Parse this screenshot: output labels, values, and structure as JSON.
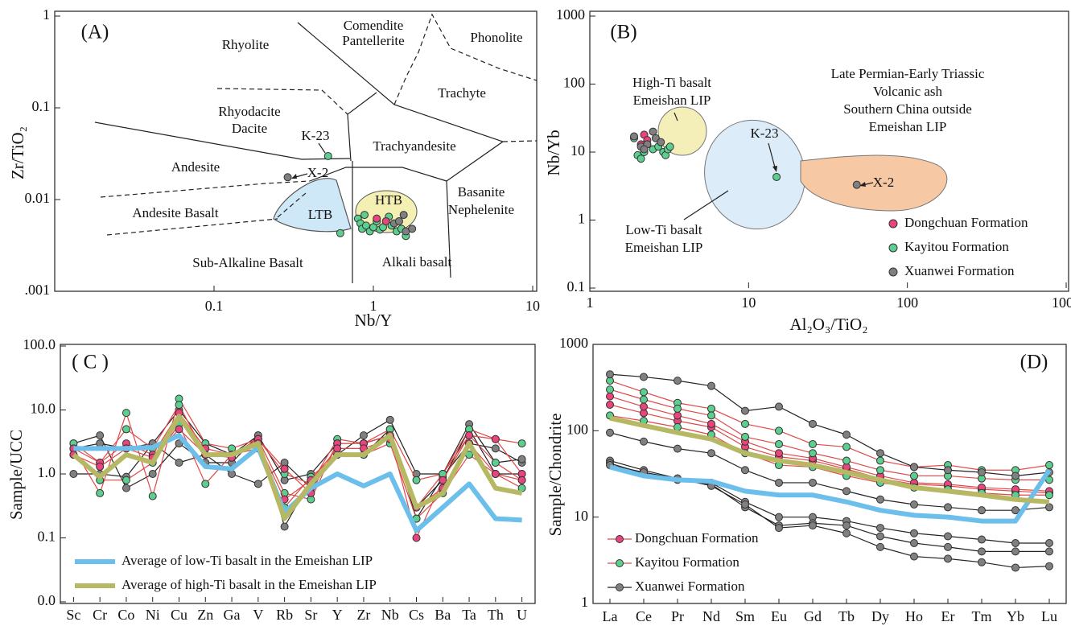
{
  "chart_data": [
    {
      "type": "scatter",
      "title": "(A)",
      "x_label": "Nb/Y",
      "y_label": "Zr/TiO₂",
      "xscale": "log",
      "yscale": "log",
      "xlim": [
        0.01,
        10
      ],
      "ylim": [
        0.001,
        1
      ],
      "xticks": [
        0.1,
        1,
        10
      ],
      "yticks": [
        1,
        0.1,
        0.01,
        {
          "value": 0.001,
          "label": ".001"
        }
      ],
      "legend": "none",
      "annotations": [
        "Rhyolite",
        "Comendite",
        "Pantellerite",
        "Phonolite",
        "Trachyte",
        "Rhyodacite",
        "Dacite",
        "Trachyandesite",
        "Andesite",
        "Andesite Basalt",
        "Basanite",
        "Nephelenite",
        "Sub-Alkaline Basalt",
        "Alkali basalt",
        "LTB",
        "HTB",
        "K-23",
        "X-2"
      ],
      "series": [
        {
          "color": "#5ccf8f",
          "x": [
            0.8,
            0.83,
            0.85,
            0.88,
            0.9,
            0.95,
            1.0,
            1.05,
            1.1,
            1.15,
            1.25,
            1.3,
            1.4,
            1.5,
            1.6,
            0.62,
            0.52
          ],
          "y": [
            0.0062,
            0.0055,
            0.0048,
            0.0068,
            0.0052,
            0.0045,
            0.005,
            0.0058,
            0.0047,
            0.005,
            0.0065,
            0.0052,
            0.0045,
            0.0048,
            0.004,
            0.0043,
            0.0298
          ]
        },
        {
          "color": "#e8457c",
          "x": [
            1.05,
            1.2
          ],
          "y": [
            0.0062,
            0.0058
          ]
        },
        {
          "color": "#808080",
          "x": [
            1.35,
            1.45,
            1.55,
            1.6,
            1.75,
            0.29
          ],
          "y": [
            0.0055,
            0.0058,
            0.0068,
            0.0045,
            0.0048,
            0.0175
          ]
        }
      ]
    },
    {
      "type": "scatter",
      "title": "(B)",
      "x_label": "Al₂O₃/TiO₂",
      "y_label": "Nb/Yb",
      "xscale": "log",
      "yscale": "log",
      "xlim": [
        1,
        1000
      ],
      "ylim": [
        0.1,
        1000
      ],
      "xticks": [
        1,
        10,
        100,
        1000
      ],
      "yticks": [
        0.1,
        1,
        10,
        100,
        1000
      ],
      "legend": "lower right",
      "annotations": [
        "High-Ti basalt",
        "Emeishan LIP",
        "Late Permian-Early Triassic",
        "Volcanic ash",
        "Southern China outside",
        "Emeishan LIP",
        "K-23",
        "X-2",
        "Low-Ti basalt",
        "Emeishan LIP"
      ],
      "series": [
        {
          "name": "Dongchuan Formation",
          "color": "#e8457c",
          "x": [
            2.2,
            2.3,
            2.1
          ],
          "y": [
            18,
            15,
            13
          ]
        },
        {
          "name": "Kayitou Formation",
          "color": "#5ccf8f",
          "x": [
            1.9,
            2.0,
            2.1,
            2.2,
            2.3,
            2.5,
            2.7,
            2.9,
            3.0,
            3.1,
            3.2,
            15
          ],
          "y": [
            16,
            9,
            8,
            10,
            13,
            11,
            12,
            10,
            9,
            11,
            12,
            4.3
          ]
        },
        {
          "name": "Xuanwei Formation",
          "color": "#808080",
          "x": [
            1.9,
            2.1,
            2.3,
            2.5,
            2.6,
            2.8,
            2.2,
            48
          ],
          "y": [
            17,
            12,
            13,
            20,
            16,
            14,
            11,
            3.3
          ]
        }
      ]
    },
    {
      "type": "line",
      "title": "( C )",
      "y_label": "Sample/UCC",
      "yscale": "log",
      "ylim": [
        0.01,
        100
      ],
      "yticks": [
        {
          "value": 100,
          "label": "100.0"
        },
        {
          "value": 10,
          "label": "10.0"
        },
        {
          "value": 1,
          "label": "1.0"
        },
        0.1,
        {
          "value": 0.01,
          "label": "0.0"
        }
      ],
      "legend": "lower left",
      "categories": [
        "Sc",
        "Cr",
        "Co",
        "Ni",
        "Cu",
        "Zn",
        "Ga",
        "V",
        "Rb",
        "Sr",
        "Y",
        "Zr",
        "Nb",
        "Cs",
        "Ba",
        "Ta",
        "Th",
        "U"
      ],
      "series": [
        {
          "color": "#222222",
          "marker_color": "#808080",
          "values": [
            3,
            4,
            0.6,
            1,
            3,
            1.5,
            1.5,
            4,
            0.15,
            0.8,
            2,
            2,
            5,
            0.2,
            0.9,
            3,
            2.5,
            1.5
          ]
        },
        {
          "color": "#222222",
          "marker_color": "#808080",
          "values": [
            1,
            1,
            0.9,
            3,
            1.5,
            2,
            1,
            0.7,
            1.5,
            0.6,
            2,
            4,
            7,
            1,
            1,
            6,
            1.5,
            1.7
          ]
        },
        {
          "color": "#222222",
          "marker_color": "#808080",
          "values": [
            2.5,
            3,
            2.5,
            3,
            10,
            3,
            2,
            4,
            0.8,
            1,
            3,
            3,
            4,
            0.3,
            0.8,
            5,
            1,
            1
          ]
        },
        {
          "color": "#e04848",
          "marker_color": "#5ccf8f",
          "values": [
            2.5,
            0.5,
            9,
            0.45,
            15,
            3,
            2.5,
            3.5,
            1,
            0.7,
            3.5,
            3,
            5,
            0.8,
            1,
            5,
            3.5,
            3
          ]
        },
        {
          "color": "#e04848",
          "marker_color": "#5ccf8f",
          "values": [
            3,
            1.5,
            5,
            2.5,
            12,
            2,
            2,
            3.5,
            0.5,
            0.4,
            3,
            3,
            4,
            0.3,
            1,
            4,
            1.5,
            0.8
          ]
        },
        {
          "color": "#e04848",
          "marker_color": "#5ccf8f",
          "values": [
            2,
            0.8,
            0.8,
            1.5,
            6,
            0.7,
            2,
            2.5,
            0.3,
            0.9,
            2,
            2,
            3,
            0.2,
            0.5,
            2,
            1,
            0.6
          ]
        },
        {
          "color": "#e04848",
          "marker_color": "#e8457c",
          "values": [
            2.5,
            1.5,
            3,
            2,
            9,
            2.5,
            2,
            3.5,
            1.2,
            0.5,
            3,
            3,
            4,
            0.1,
            0.8,
            4,
            3.5,
            1
          ]
        },
        {
          "color": "#e04848",
          "marker_color": "#e8457c",
          "values": [
            2,
            1.3,
            2.5,
            1.8,
            5,
            2,
            1.8,
            3,
            0.4,
            0.8,
            2.5,
            2.5,
            3.5,
            0.3,
            0.6,
            3,
            1,
            0.8
          ]
        },
        {
          "name": "Average of low-Ti basalt in the Emeishan LIP",
          "color": "#6cbfea",
          "markers": false,
          "values": [
            2.5,
            2.5,
            2.5,
            2.6,
            4,
            1.3,
            1.2,
            2.6,
            0.25,
            0.6,
            1.0,
            0.65,
            1.0,
            0.13,
            0.3,
            0.7,
            0.2,
            0.19
          ]
        },
        {
          "name": "Average of high-Ti basalt in the Emeishan LIP",
          "color": "#b7b864",
          "markers": false,
          "values": [
            2,
            0.9,
            2,
            1.5,
            8,
            2,
            2,
            3,
            0.2,
            0.7,
            2,
            2,
            4,
            0.3,
            0.5,
            3,
            0.6,
            0.5
          ]
        }
      ]
    },
    {
      "type": "line",
      "title": "(D)",
      "y_label": "Sample/Chondrite",
      "yscale": "log",
      "ylim": [
        1,
        1000
      ],
      "yticks": [
        1,
        10,
        100,
        1000
      ],
      "legend": "lower left",
      "categories": [
        "La",
        "Ce",
        "Pr",
        "Nd",
        "Sm",
        "Eu",
        "Gd",
        "Tb",
        "Dy",
        "Ho",
        "Er",
        "Tm",
        "Yb",
        "Lu"
      ],
      "series": [
        {
          "name": "Dongchuan Formation",
          "color": "#e04848",
          "marker_color": "#e8457c",
          "values": [
            200,
            160,
            130,
            110,
            65,
            50,
            45,
            36,
            28,
            24,
            23,
            21,
            20,
            19
          ]
        },
        {
          "color": "#e04848",
          "marker_color": "#e8457c",
          "values": [
            250,
            190,
            150,
            120,
            75,
            55,
            48,
            38,
            30,
            25,
            24,
            22,
            21,
            20
          ]
        },
        {
          "name": "Kayitou Formation",
          "color": "#e04848",
          "marker_color": "#5ccf8f",
          "values": [
            380,
            280,
            210,
            180,
            120,
            100,
            70,
            65,
            45,
            38,
            40,
            35,
            35,
            40
          ]
        },
        {
          "color": "#e04848",
          "marker_color": "#5ccf8f",
          "values": [
            300,
            230,
            180,
            150,
            85,
            70,
            55,
            45,
            35,
            30,
            30,
            28,
            27,
            27
          ]
        },
        {
          "color": "#e04848",
          "marker_color": "#5ccf8f",
          "values": [
            150,
            130,
            110,
            90,
            55,
            40,
            38,
            30,
            25,
            22,
            21,
            19,
            18,
            18
          ]
        },
        {
          "name": "Xuanwei Formation",
          "color": "#222222",
          "marker_color": "#808080",
          "values": [
            450,
            420,
            380,
            330,
            170,
            190,
            120,
            90,
            55,
            38,
            35,
            33,
            30,
            33
          ]
        },
        {
          "color": "#222222",
          "marker_color": "#808080",
          "values": [
            95,
            75,
            62,
            55,
            35,
            25,
            25,
            20,
            16,
            14,
            13,
            12,
            12,
            13
          ]
        },
        {
          "color": "#222222",
          "marker_color": "#808080",
          "values": [
            45,
            35,
            28,
            25,
            15,
            10,
            10,
            9,
            7.5,
            6.5,
            6,
            5.5,
            5,
            5
          ]
        },
        {
          "color": "#222222",
          "marker_color": "#808080",
          "values": [
            42,
            32,
            27,
            24,
            13,
            8,
            8.5,
            8,
            6,
            5,
            4.5,
            4,
            4,
            4
          ]
        },
        {
          "color": "#222222",
          "marker_color": "#808080",
          "values": [
            40,
            33,
            28,
            23,
            14,
            7.5,
            8,
            6.5,
            4.5,
            3.5,
            3.3,
            3,
            2.6,
            2.7
          ]
        },
        {
          "color": "#6cbfea",
          "markers": false,
          "values": [
            38,
            30,
            27,
            26,
            20,
            18,
            18,
            15,
            12,
            10.5,
            10,
            9,
            9,
            35
          ]
        },
        {
          "color": "#b7b864",
          "markers": false,
          "values": [
            140,
            115,
            95,
            80,
            55,
            45,
            40,
            33,
            27,
            22,
            20,
            18,
            16,
            15
          ]
        }
      ]
    }
  ]
}
